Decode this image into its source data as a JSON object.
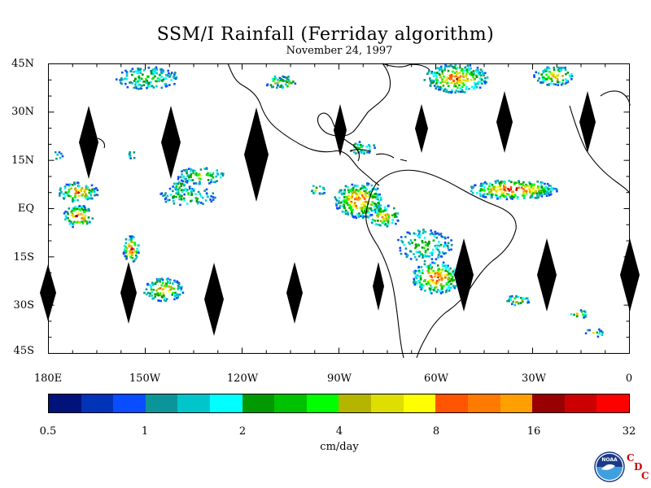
{
  "title": "SSM/I Rainfall (Ferriday algorithm)",
  "subtitle": "November 24, 1997",
  "lat_labels": [
    "45N",
    "30N",
    "15N",
    "EQ",
    "15S",
    "30S",
    "45S"
  ],
  "lon_labels": [
    "180E",
    "150W",
    "120W",
    "90W",
    "60W",
    "30W",
    "0"
  ],
  "colorbar": {
    "colors": [
      "#00137a",
      "#0033b8",
      "#0a4cff",
      "#0c9598",
      "#00c6cc",
      "#00ffff",
      "#009900",
      "#00c200",
      "#00ff00",
      "#b5b500",
      "#dede00",
      "#ffff00",
      "#ff5500",
      "#ff7a00",
      "#ffa000",
      "#990000",
      "#cc0000",
      "#ff0000"
    ],
    "tick_labels": [
      "0.5",
      "1",
      "2",
      "4",
      "8",
      "16",
      "32"
    ],
    "units": "cm/day"
  },
  "logo": {
    "text": "NOAA",
    "brand_letters": [
      "C",
      "D",
      "C"
    ]
  }
}
